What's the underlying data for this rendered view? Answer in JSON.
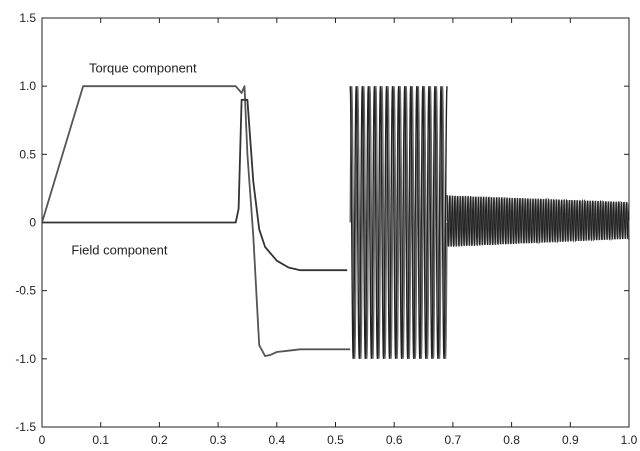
{
  "chart_data": {
    "type": "line",
    "title": "",
    "xlabel": "",
    "ylabel": "",
    "xlim": [
      0,
      1.0
    ],
    "ylim": [
      -1.5,
      1.5
    ],
    "x_ticks": [
      0,
      0.1,
      0.2,
      0.3,
      0.4,
      0.5,
      0.6,
      0.7,
      0.8,
      0.9,
      1.0
    ],
    "x_tick_labels": [
      "0",
      "0.1",
      "0.2",
      "0.3",
      "0.4",
      "0.5",
      "0.6",
      "0.7",
      "0.8",
      "0.9",
      "1.0"
    ],
    "y_ticks": [
      -1.5,
      -1.0,
      -0.5,
      0,
      0.5,
      1.0,
      1.5
    ],
    "y_tick_labels": [
      "-1.5",
      "-1.0",
      "-0.5",
      "0",
      "0.5",
      "1.0",
      "1.5"
    ],
    "grid": false,
    "legend": "none",
    "annotations": [
      {
        "text": "Torque component",
        "x": 0.08,
        "y": 1.1
      },
      {
        "text": "Field component",
        "x": 0.05,
        "y": -0.16
      }
    ],
    "series": [
      {
        "name": "Torque component",
        "color": "#555555",
        "x": [
          0,
          0.07,
          0.33,
          0.34,
          0.345,
          0.35,
          0.36,
          0.37,
          0.38,
          0.39,
          0.4,
          0.42,
          0.44,
          0.47,
          0.5,
          0.52,
          0.525
        ],
        "y": [
          0,
          1.0,
          1.0,
          0.95,
          1.0,
          0.5,
          -0.1,
          -0.9,
          -0.98,
          -0.97,
          -0.95,
          -0.94,
          -0.93,
          -0.93,
          -0.93,
          -0.93,
          -0.93
        ]
      },
      {
        "name": "Field component",
        "color": "#333333",
        "x": [
          0,
          0.33,
          0.335,
          0.34,
          0.35,
          0.36,
          0.37,
          0.38,
          0.4,
          0.42,
          0.44,
          0.46,
          0.48,
          0.5,
          0.52
        ],
        "y": [
          0,
          0,
          0.1,
          0.9,
          0.9,
          0.3,
          -0.05,
          -0.18,
          -0.28,
          -0.33,
          -0.35,
          -0.35,
          -0.35,
          -0.35,
          -0.35
        ]
      }
    ],
    "oscillation_regions": [
      {
        "x_start": 0.525,
        "x_end": 0.69,
        "y_min": -1.0,
        "y_max": 1.0,
        "cycles": 16
      },
      {
        "x_start": 0.69,
        "x_end": 1.0,
        "y_min": -0.18,
        "y_max": 0.2,
        "y_min_end": -0.12,
        "y_max_end": 0.15,
        "cycles": 70
      }
    ]
  }
}
